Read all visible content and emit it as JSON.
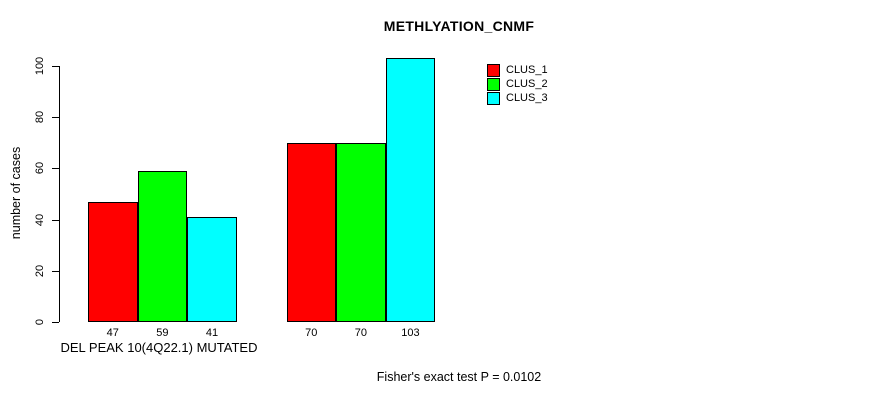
{
  "chart_data": {
    "type": "bar",
    "title": "METHLYATION_CNMF",
    "xlabel": "DEL PEAK 10(4Q22.1) MUTATED",
    "ylabel": "number of cases",
    "yticks": [
      0,
      20,
      40,
      60,
      80,
      100
    ],
    "ylim": [
      0,
      103
    ],
    "grid": false,
    "legend_position": "top-right",
    "groups": 2,
    "series": [
      {
        "name": "CLUS_1",
        "color": "#FF0000",
        "values": [
          47,
          70
        ]
      },
      {
        "name": "CLUS_2",
        "color": "#00FF00",
        "values": [
          59,
          70
        ]
      },
      {
        "name": "CLUS_3",
        "color": "#00FFFF",
        "values": [
          41,
          103
        ]
      }
    ],
    "bar_value_labels": [
      [
        47,
        59,
        41
      ],
      [
        70,
        70,
        103
      ]
    ],
    "annotation": "Fisher's exact test P = 0.0102"
  },
  "colors": {
    "background": "#FFFFFF",
    "axis": "#000000",
    "text": "#000000"
  }
}
